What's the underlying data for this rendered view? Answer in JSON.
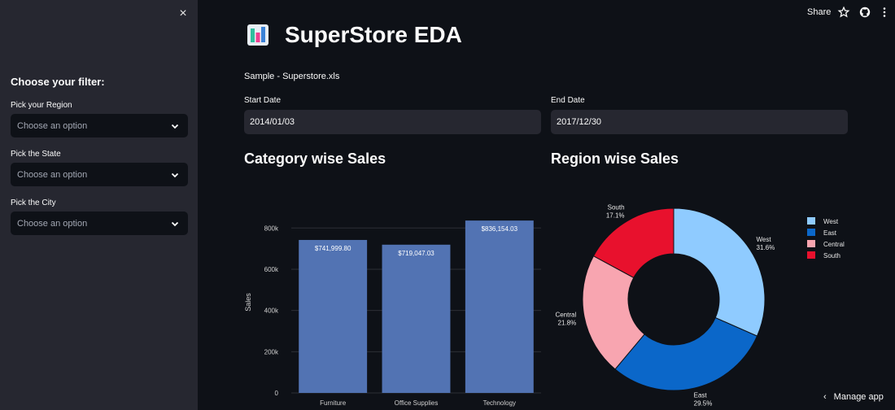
{
  "sidebar": {
    "close_label": "×",
    "heading": "Choose your filter:",
    "filters": [
      {
        "label": "Pick your Region",
        "placeholder": "Choose an option"
      },
      {
        "label": "Pick the State",
        "placeholder": "Choose an option"
      },
      {
        "label": "Pick the City",
        "placeholder": "Choose an option"
      }
    ]
  },
  "header": {
    "share_label": "Share",
    "icons": [
      "star-icon",
      "github-icon",
      "more-vertical-icon"
    ]
  },
  "main": {
    "title": "SuperStore EDA",
    "title_icon": "bar-chart-icon",
    "file_name": "Sample - Superstore.xls",
    "start_date": {
      "label": "Start Date",
      "value": "2014/01/03"
    },
    "end_date": {
      "label": "End Date",
      "value": "2017/12/30"
    },
    "category_title": "Category wise Sales",
    "region_title": "Region wise Sales"
  },
  "footer": {
    "manage_label": "Manage app"
  },
  "chart_data": [
    {
      "type": "bar",
      "categories": [
        "Furniture",
        "Office Supplies",
        "Technology"
      ],
      "values": [
        741999.8,
        719047.03,
        836154.03
      ],
      "data_labels": [
        "$741,999.80",
        "$719,047.03",
        "$836,154.03"
      ],
      "ylabel": "Sales",
      "yticks": [
        0,
        200000,
        400000,
        600000,
        800000
      ],
      "ytick_labels": [
        "0",
        "200k",
        "400k",
        "600k",
        "800k"
      ],
      "ylim": [
        0,
        880000
      ],
      "color": "#5273b3",
      "grid": true
    },
    {
      "type": "pie",
      "donut": true,
      "slices": [
        {
          "name": "West",
          "value": 31.6,
          "label": "31.6%",
          "color": "#8fcbff"
        },
        {
          "name": "East",
          "value": 29.5,
          "label": "29.5%",
          "color": "#0b67c9"
        },
        {
          "name": "Central",
          "value": 21.8,
          "label": "21.8%",
          "color": "#f8a5b0"
        },
        {
          "name": "South",
          "value": 17.1,
          "label": "17.1%",
          "color": "#e8112d"
        }
      ],
      "legend": [
        "West",
        "East",
        "Central",
        "South"
      ],
      "legend_position": "top-right"
    }
  ]
}
